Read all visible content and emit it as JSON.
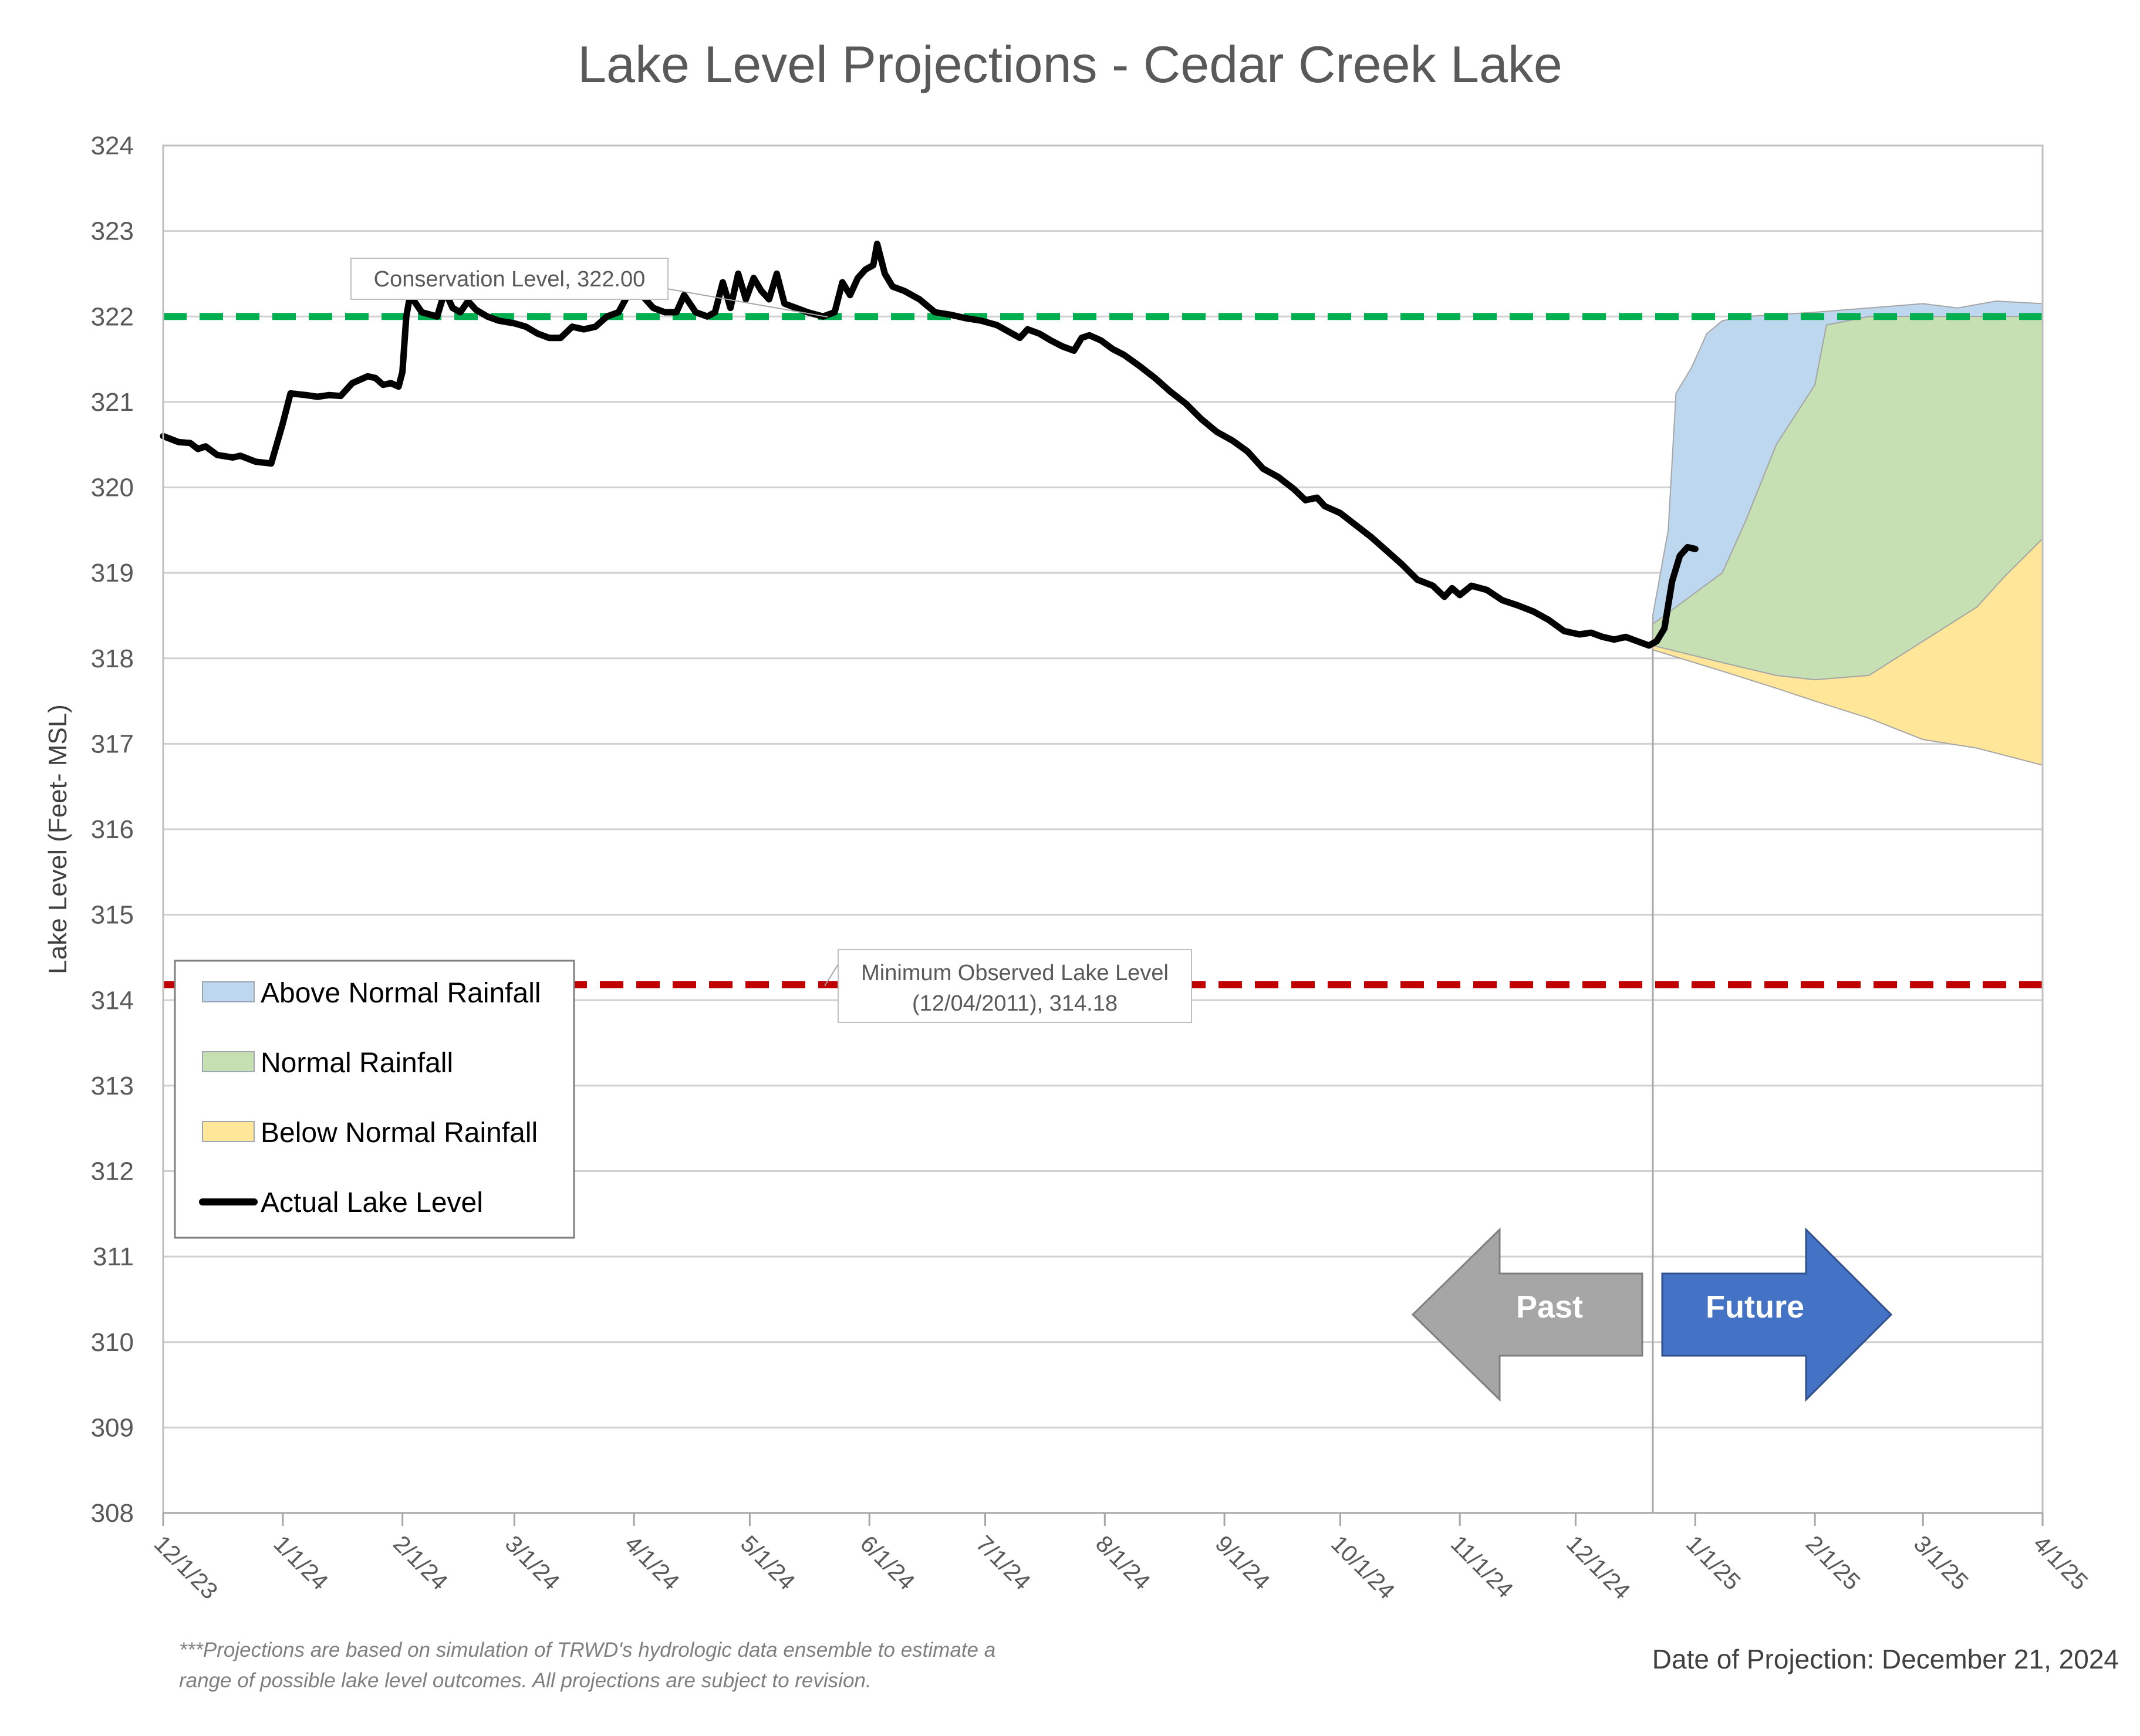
{
  "chart_data": {
    "type": "area",
    "title": "Lake Level Projections - Cedar Creek Lake",
    "ylabel": "Lake Level (Feet- MSL)",
    "xlabel": "",
    "ylim": [
      308,
      324
    ],
    "xlim": [
      "2023-12-01",
      "2025-04-01"
    ],
    "grid": true,
    "y_ticks": [
      308,
      309,
      310,
      311,
      312,
      313,
      314,
      315,
      316,
      317,
      318,
      319,
      320,
      321,
      322,
      323,
      324
    ],
    "x_ticks": [
      {
        "date": "2023-12-01",
        "label": "12/1/23"
      },
      {
        "date": "2024-01-01",
        "label": "1/1/24"
      },
      {
        "date": "2024-02-01",
        "label": "2/1/24"
      },
      {
        "date": "2024-03-01",
        "label": "3/1/24"
      },
      {
        "date": "2024-04-01",
        "label": "4/1/24"
      },
      {
        "date": "2024-05-01",
        "label": "5/1/24"
      },
      {
        "date": "2024-06-01",
        "label": "6/1/24"
      },
      {
        "date": "2024-07-01",
        "label": "7/1/24"
      },
      {
        "date": "2024-08-01",
        "label": "8/1/24"
      },
      {
        "date": "2024-09-01",
        "label": "9/1/24"
      },
      {
        "date": "2024-10-01",
        "label": "10/1/24"
      },
      {
        "date": "2024-11-01",
        "label": "11/1/24"
      },
      {
        "date": "2024-12-01",
        "label": "12/1/24"
      },
      {
        "date": "2025-01-01",
        "label": "1/1/25"
      },
      {
        "date": "2025-02-01",
        "label": "2/1/25"
      },
      {
        "date": "2025-03-01",
        "label": "3/1/25"
      },
      {
        "date": "2025-04-01",
        "label": "4/1/25"
      }
    ],
    "projection_date": "2024-12-21",
    "reference_lines": [
      {
        "name": "Conservation Level",
        "value": 322.0,
        "color": "#00b050",
        "label": "Conservation Level, 322.00"
      },
      {
        "name": "Minimum Observed Lake Level",
        "value": 314.18,
        "color": "#c00000",
        "label_line1": "Minimum Observed Lake Level",
        "label_line2": "(12/04/2011), 314.18"
      }
    ],
    "series": [
      {
        "name": "Actual Lake Level",
        "type": "line",
        "color": "#000000",
        "points": [
          [
            "2023-12-01",
            320.6
          ],
          [
            "2023-12-05",
            320.53
          ],
          [
            "2023-12-08",
            320.52
          ],
          [
            "2023-12-10",
            320.45
          ],
          [
            "2023-12-12",
            320.48
          ],
          [
            "2023-12-15",
            320.38
          ],
          [
            "2023-12-19",
            320.35
          ],
          [
            "2023-12-21",
            320.37
          ],
          [
            "2023-12-25",
            320.3
          ],
          [
            "2023-12-29",
            320.28
          ],
          [
            "2024-01-01",
            320.75
          ],
          [
            "2024-01-03",
            321.1
          ],
          [
            "2024-01-07",
            321.08
          ],
          [
            "2024-01-10",
            321.06
          ],
          [
            "2024-01-13",
            321.08
          ],
          [
            "2024-01-16",
            321.07
          ],
          [
            "2024-01-19",
            321.22
          ],
          [
            "2024-01-23",
            321.3
          ],
          [
            "2024-01-25",
            321.28
          ],
          [
            "2024-01-27",
            321.2
          ],
          [
            "2024-01-29",
            321.22
          ],
          [
            "2024-01-31",
            321.18
          ],
          [
            "2024-02-01",
            321.35
          ],
          [
            "2024-02-02",
            322.0
          ],
          [
            "2024-02-03",
            322.25
          ],
          [
            "2024-02-06",
            322.05
          ],
          [
            "2024-02-10",
            322.0
          ],
          [
            "2024-02-12",
            322.3
          ],
          [
            "2024-02-14",
            322.1
          ],
          [
            "2024-02-16",
            322.05
          ],
          [
            "2024-02-18",
            322.18
          ],
          [
            "2024-02-20",
            322.08
          ],
          [
            "2024-02-23",
            322.0
          ],
          [
            "2024-02-26",
            321.95
          ],
          [
            "2024-03-01",
            321.92
          ],
          [
            "2024-03-04",
            321.88
          ],
          [
            "2024-03-07",
            321.8
          ],
          [
            "2024-03-10",
            321.75
          ],
          [
            "2024-03-13",
            321.75
          ],
          [
            "2024-03-16",
            321.88
          ],
          [
            "2024-03-19",
            321.85
          ],
          [
            "2024-03-22",
            321.88
          ],
          [
            "2024-03-25",
            322.0
          ],
          [
            "2024-03-28",
            322.05
          ],
          [
            "2024-03-31",
            322.3
          ],
          [
            "2024-04-03",
            322.25
          ],
          [
            "2024-04-06",
            322.1
          ],
          [
            "2024-04-09",
            322.05
          ],
          [
            "2024-04-12",
            322.05
          ],
          [
            "2024-04-14",
            322.25
          ],
          [
            "2024-04-17",
            322.05
          ],
          [
            "2024-04-20",
            322.0
          ],
          [
            "2024-04-22",
            322.05
          ],
          [
            "2024-04-24",
            322.4
          ],
          [
            "2024-04-26",
            322.1
          ],
          [
            "2024-04-28",
            322.5
          ],
          [
            "2024-04-30",
            322.2
          ],
          [
            "2024-05-02",
            322.45
          ],
          [
            "2024-05-04",
            322.3
          ],
          [
            "2024-05-06",
            322.2
          ],
          [
            "2024-05-08",
            322.5
          ],
          [
            "2024-05-10",
            322.15
          ],
          [
            "2024-05-13",
            322.1
          ],
          [
            "2024-05-16",
            322.05
          ],
          [
            "2024-05-20",
            322.0
          ],
          [
            "2024-05-23",
            322.05
          ],
          [
            "2024-05-25",
            322.4
          ],
          [
            "2024-05-27",
            322.25
          ],
          [
            "2024-05-29",
            322.45
          ],
          [
            "2024-05-31",
            322.55
          ],
          [
            "2024-06-02",
            322.6
          ],
          [
            "2024-06-03",
            322.85
          ],
          [
            "2024-06-05",
            322.5
          ],
          [
            "2024-06-07",
            322.35
          ],
          [
            "2024-06-10",
            322.3
          ],
          [
            "2024-06-14",
            322.2
          ],
          [
            "2024-06-18",
            322.05
          ],
          [
            "2024-06-22",
            322.02
          ],
          [
            "2024-06-26",
            321.98
          ],
          [
            "2024-06-30",
            321.95
          ],
          [
            "2024-07-04",
            321.9
          ],
          [
            "2024-07-08",
            321.8
          ],
          [
            "2024-07-10",
            321.75
          ],
          [
            "2024-07-12",
            321.85
          ],
          [
            "2024-07-15",
            321.8
          ],
          [
            "2024-07-18",
            321.72
          ],
          [
            "2024-07-21",
            321.65
          ],
          [
            "2024-07-24",
            321.6
          ],
          [
            "2024-07-26",
            321.75
          ],
          [
            "2024-07-28",
            321.78
          ],
          [
            "2024-07-31",
            321.72
          ],
          [
            "2024-08-03",
            321.62
          ],
          [
            "2024-08-06",
            321.55
          ],
          [
            "2024-08-10",
            321.42
          ],
          [
            "2024-08-14",
            321.28
          ],
          [
            "2024-08-18",
            321.12
          ],
          [
            "2024-08-22",
            320.98
          ],
          [
            "2024-08-26",
            320.8
          ],
          [
            "2024-08-30",
            320.65
          ],
          [
            "2024-09-03",
            320.55
          ],
          [
            "2024-09-07",
            320.42
          ],
          [
            "2024-09-11",
            320.22
          ],
          [
            "2024-09-15",
            320.12
          ],
          [
            "2024-09-19",
            319.98
          ],
          [
            "2024-09-22",
            319.85
          ],
          [
            "2024-09-25",
            319.88
          ],
          [
            "2024-09-27",
            319.78
          ],
          [
            "2024-10-01",
            319.7
          ],
          [
            "2024-10-05",
            319.56
          ],
          [
            "2024-10-09",
            319.42
          ],
          [
            "2024-10-13",
            319.26
          ],
          [
            "2024-10-17",
            319.1
          ],
          [
            "2024-10-21",
            318.92
          ],
          [
            "2024-10-25",
            318.85
          ],
          [
            "2024-10-28",
            318.72
          ],
          [
            "2024-10-30",
            318.82
          ],
          [
            "2024-11-01",
            318.74
          ],
          [
            "2024-11-04",
            318.85
          ],
          [
            "2024-11-08",
            318.8
          ],
          [
            "2024-11-12",
            318.68
          ],
          [
            "2024-11-16",
            318.62
          ],
          [
            "2024-11-20",
            318.55
          ],
          [
            "2024-11-24",
            318.45
          ],
          [
            "2024-11-28",
            318.32
          ],
          [
            "2024-12-02",
            318.28
          ],
          [
            "2024-12-05",
            318.3
          ],
          [
            "2024-12-08",
            318.25
          ],
          [
            "2024-12-11",
            318.22
          ],
          [
            "2024-12-14",
            318.25
          ],
          [
            "2024-12-17",
            318.2
          ],
          [
            "2024-12-20",
            318.15
          ],
          [
            "2024-12-22",
            318.2
          ],
          [
            "2024-12-24",
            318.35
          ],
          [
            "2024-12-26",
            318.9
          ],
          [
            "2024-12-28",
            319.2
          ],
          [
            "2024-12-30",
            319.3
          ],
          [
            "2025-01-01",
            319.28
          ]
        ]
      },
      {
        "name": "Above Normal Rainfall",
        "type": "area",
        "color": "#bdd7ee",
        "upper": [
          [
            "2024-12-21",
            318.5
          ],
          [
            "2024-12-25",
            319.5
          ],
          [
            "2024-12-27",
            321.1
          ],
          [
            "2024-12-31",
            321.4
          ],
          [
            "2025-01-04",
            321.8
          ],
          [
            "2025-01-08",
            321.95
          ],
          [
            "2025-01-14",
            322.0
          ],
          [
            "2025-01-22",
            322.02
          ],
          [
            "2025-02-01",
            322.05
          ],
          [
            "2025-02-15",
            322.1
          ],
          [
            "2025-03-01",
            322.15
          ],
          [
            "2025-03-10",
            322.1
          ],
          [
            "2025-03-20",
            322.18
          ],
          [
            "2025-04-01",
            322.15
          ]
        ],
        "lower": [
          [
            "2024-12-21",
            318.4
          ],
          [
            "2025-01-08",
            319.0
          ],
          [
            "2025-01-14",
            319.6
          ],
          [
            "2025-01-22",
            320.5
          ],
          [
            "2025-02-01",
            321.2
          ],
          [
            "2025-02-04",
            321.9
          ],
          [
            "2025-02-15",
            322.0
          ],
          [
            "2025-04-01",
            322.0
          ]
        ]
      },
      {
        "name": "Normal Rainfall",
        "type": "area",
        "color": "#c6e0b4",
        "upper": [
          [
            "2024-12-21",
            318.4
          ],
          [
            "2025-01-08",
            319.0
          ],
          [
            "2025-01-14",
            319.6
          ],
          [
            "2025-01-22",
            320.5
          ],
          [
            "2025-02-01",
            321.2
          ],
          [
            "2025-02-04",
            321.9
          ],
          [
            "2025-02-15",
            322.0
          ],
          [
            "2025-04-01",
            322.0
          ]
        ],
        "lower": [
          [
            "2024-12-21",
            318.15
          ],
          [
            "2025-01-08",
            317.95
          ],
          [
            "2025-01-22",
            317.8
          ],
          [
            "2025-02-01",
            317.75
          ],
          [
            "2025-02-15",
            317.8
          ],
          [
            "2025-03-01",
            318.2
          ],
          [
            "2025-03-15",
            318.6
          ],
          [
            "2025-03-22",
            318.95
          ],
          [
            "2025-04-01",
            319.4
          ]
        ]
      },
      {
        "name": "Below Normal Rainfall",
        "type": "area",
        "color": "#ffe699",
        "upper": [
          [
            "2024-12-21",
            318.15
          ],
          [
            "2025-01-08",
            317.95
          ],
          [
            "2025-01-22",
            317.8
          ],
          [
            "2025-02-01",
            317.75
          ],
          [
            "2025-02-15",
            317.8
          ],
          [
            "2025-03-01",
            318.2
          ],
          [
            "2025-03-15",
            318.6
          ],
          [
            "2025-03-22",
            318.95
          ],
          [
            "2025-04-01",
            319.4
          ]
        ],
        "lower": [
          [
            "2024-12-21",
            318.1
          ],
          [
            "2025-01-08",
            317.85
          ],
          [
            "2025-01-22",
            317.65
          ],
          [
            "2025-02-01",
            317.5
          ],
          [
            "2025-02-15",
            317.3
          ],
          [
            "2025-03-01",
            317.05
          ],
          [
            "2025-03-15",
            316.95
          ],
          [
            "2025-04-01",
            316.75
          ]
        ]
      }
    ]
  },
  "legend": {
    "items": [
      {
        "label": "Above Normal Rainfall",
        "color": "#bdd7ee",
        "kind": "area"
      },
      {
        "label": "Normal Rainfall",
        "color": "#c6e0b4",
        "kind": "area"
      },
      {
        "label": "Below Normal Rainfall",
        "color": "#ffe699",
        "kind": "area"
      },
      {
        "label": "Actual Lake Level",
        "color": "#000000",
        "kind": "line"
      }
    ]
  },
  "arrows": {
    "past_label": "Past",
    "future_label": "Future",
    "past_color": "#a6a6a6",
    "future_color": "#4472c4"
  },
  "footnote": {
    "line1": "***Projections are based on simulation of TRWD's hydrologic data ensemble to estimate a",
    "line2": "range of possible lake level outcomes.  All projections are subject to revision."
  },
  "projection_note": "Date of Projection: December 21, 2024"
}
